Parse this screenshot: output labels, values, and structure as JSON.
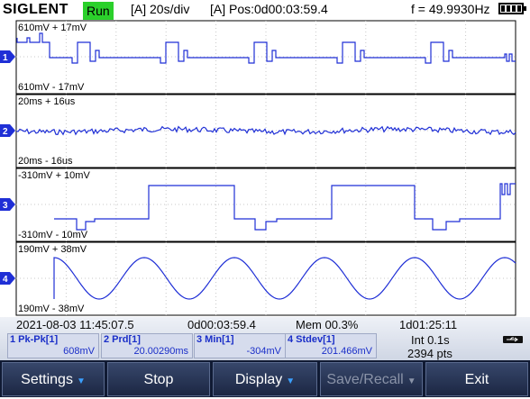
{
  "brand": "SIGLENT",
  "run_state": "Run",
  "timebase": "[A] 20s/div",
  "position": "[A] Pos:0d00:03:59.4",
  "frequency": "f = 49.9930Hz",
  "colors": {
    "trace": "#1f2fd6",
    "grid": "#c8c8c8",
    "run": "#2bd02b",
    "softkey": "#1c2743"
  },
  "channels": [
    {
      "marker": "1",
      "upper": "610mV + 17mV",
      "lower": "610mV - 17mV"
    },
    {
      "marker": "2",
      "upper": "20ms + 16us",
      "lower": "20ms - 16us"
    },
    {
      "marker": "3",
      "upper": "-310mV + 10mV",
      "lower": "-310mV - 10mV"
    },
    {
      "marker": "4",
      "upper": "190mV + 38mV",
      "lower": "190mV - 38mV"
    }
  ],
  "status": {
    "datetime": "2021-08-03 11:45:07.5",
    "elapsed": "0d00:03:59.4",
    "memory": "Mem 00.3%",
    "duration": "1d01:25:11",
    "interval": "Int 0.1s",
    "points": "2394 pts"
  },
  "measurements": [
    {
      "label": "1 Pk-Pk[1]",
      "value": "608mV"
    },
    {
      "label": "2 Prd[1]",
      "value": "20.00290ms"
    },
    {
      "label": "3 Min[1]",
      "value": "-304mV"
    },
    {
      "label": "4 Stdev[1]",
      "value": "201.466mV"
    }
  ],
  "softkeys": [
    {
      "label": "Settings",
      "arrow": true,
      "enabled": true
    },
    {
      "label": "Stop",
      "arrow": false,
      "enabled": true
    },
    {
      "label": "Display",
      "arrow": true,
      "enabled": true
    },
    {
      "label": "Save/Recall",
      "arrow": true,
      "enabled": false
    },
    {
      "label": "Exit",
      "arrow": false,
      "enabled": true
    }
  ]
}
